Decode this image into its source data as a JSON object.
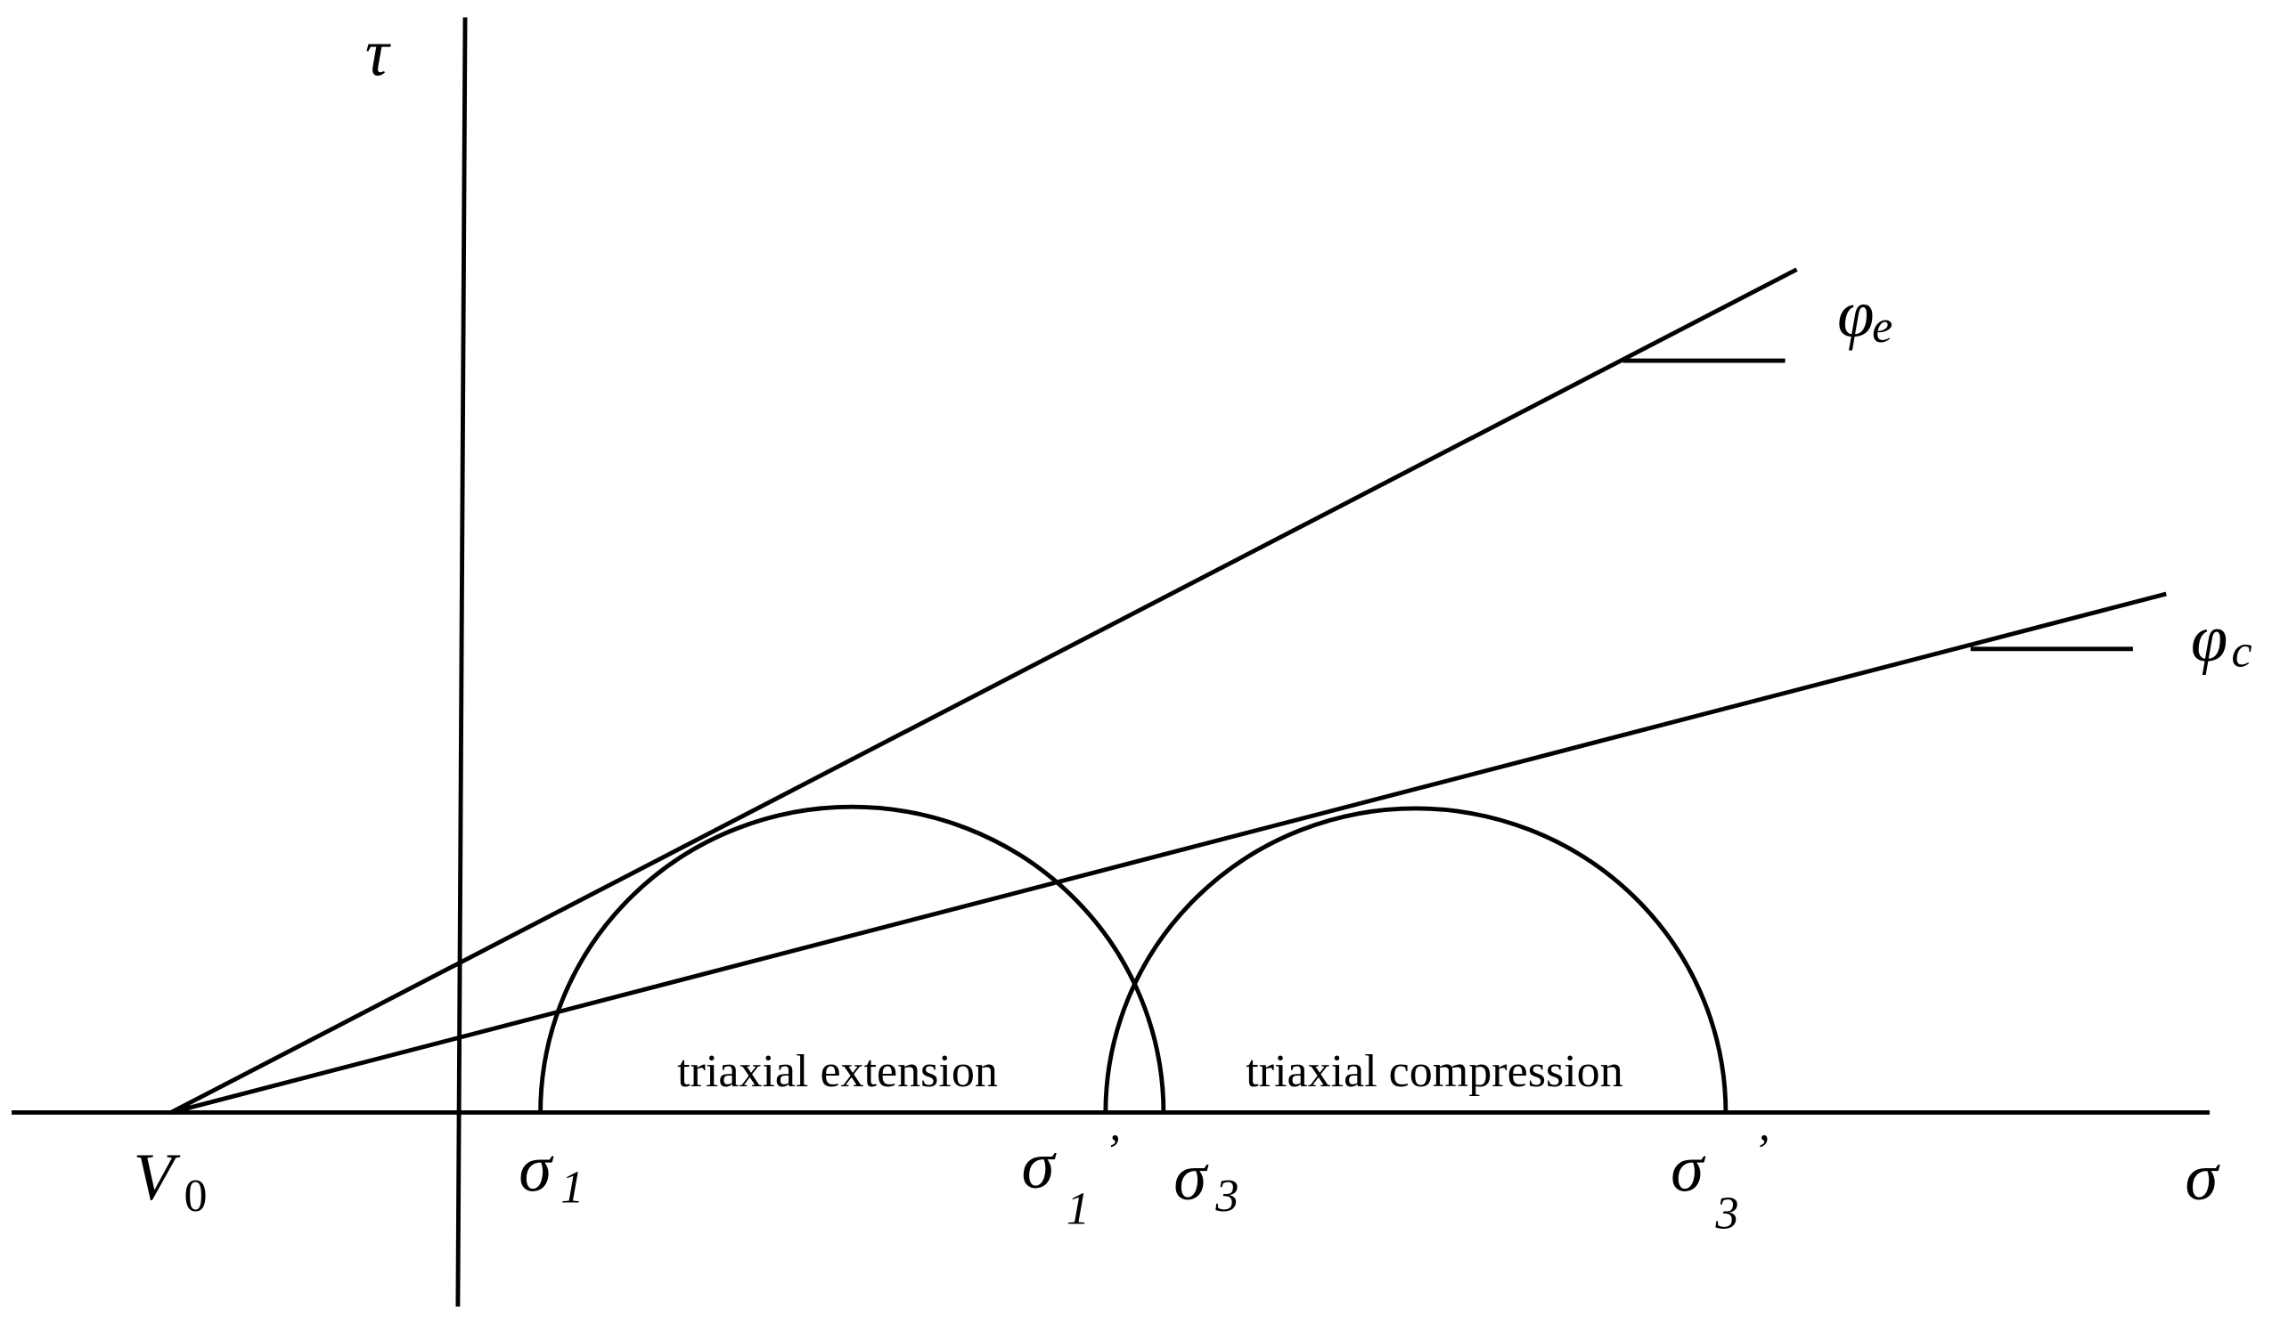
{
  "axes": {
    "tau": "τ",
    "sigma": "σ"
  },
  "points": {
    "v0": {
      "main": "V",
      "sub": "0"
    },
    "sigma1": {
      "main": "σ",
      "sub": "1"
    },
    "sigma1_prime": {
      "main": "σ",
      "sub": "1",
      "prime": "’"
    },
    "sigma3": {
      "main": "σ",
      "sub": "3"
    },
    "sigma3_prime": {
      "main": "σ",
      "sub": "3",
      "prime": "’"
    }
  },
  "angles": {
    "phi_e": {
      "main": "φ",
      "sub": "e"
    },
    "phi_c": {
      "main": "φ",
      "sub": "c"
    }
  },
  "circles": {
    "extension": "triaxial extension",
    "compression": "triaxial compression"
  }
}
